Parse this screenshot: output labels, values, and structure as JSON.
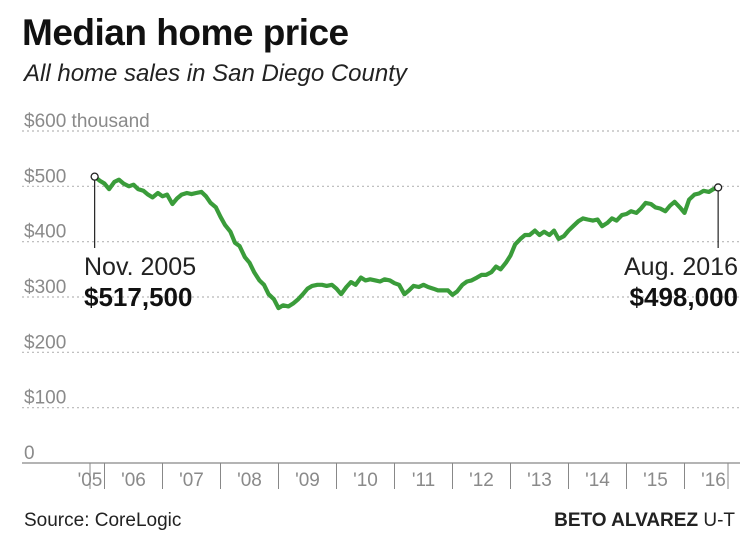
{
  "header": {
    "title": "Median home price",
    "subtitle": "All home sales in San Diego County"
  },
  "footer": {
    "source": "Source: CoreLogic",
    "credit_name": "BETO ALVAREZ",
    "credit_org": " U-T"
  },
  "colors": {
    "line": "#3a9c3a",
    "grid": "#b8b8b8",
    "axis": "#888888",
    "tick_text": "#8a8a8a"
  },
  "chart_data": {
    "type": "line",
    "title": "Median home price",
    "subtitle": "All home sales in San Diego County",
    "xlabel": "",
    "ylabel": "",
    "ylim": [
      0,
      600
    ],
    "xlim": [
      2005.75,
      2016.75
    ],
    "grid": true,
    "y_ticks": [
      {
        "value": 600,
        "label": "$600 thousand"
      },
      {
        "value": 500,
        "label": "$500"
      },
      {
        "value": 400,
        "label": "$400"
      },
      {
        "value": 300,
        "label": "$300"
      },
      {
        "value": 200,
        "label": "$200"
      },
      {
        "value": 100,
        "label": "$100"
      },
      {
        "value": 0,
        "label": "0"
      }
    ],
    "x_ticks": [
      {
        "value": 2005.75,
        "label": "'05"
      },
      {
        "value": 2006.5,
        "label": "'06"
      },
      {
        "value": 2007.5,
        "label": "'07"
      },
      {
        "value": 2008.5,
        "label": "'08"
      },
      {
        "value": 2009.5,
        "label": "'09"
      },
      {
        "value": 2010.5,
        "label": "'10"
      },
      {
        "value": 2011.5,
        "label": "'11"
      },
      {
        "value": 2012.5,
        "label": "'12"
      },
      {
        "value": 2013.5,
        "label": "'13"
      },
      {
        "value": 2014.5,
        "label": "'14"
      },
      {
        "value": 2015.5,
        "label": "'15"
      },
      {
        "value": 2016.5,
        "label": "'16"
      }
    ],
    "series": [
      {
        "values_thousands": [
          [
            2005.83,
            517.5
          ],
          [
            2005.92,
            510
          ],
          [
            2006.0,
            505
          ],
          [
            2006.08,
            495
          ],
          [
            2006.17,
            508
          ],
          [
            2006.25,
            512
          ],
          [
            2006.33,
            505
          ],
          [
            2006.42,
            500
          ],
          [
            2006.5,
            503
          ],
          [
            2006.58,
            495
          ],
          [
            2006.67,
            492
          ],
          [
            2006.75,
            485
          ],
          [
            2006.83,
            480
          ],
          [
            2006.92,
            488
          ],
          [
            2007.0,
            482
          ],
          [
            2007.08,
            485
          ],
          [
            2007.17,
            468
          ],
          [
            2007.25,
            478
          ],
          [
            2007.33,
            485
          ],
          [
            2007.42,
            488
          ],
          [
            2007.5,
            486
          ],
          [
            2007.58,
            488
          ],
          [
            2007.67,
            490
          ],
          [
            2007.75,
            482
          ],
          [
            2007.83,
            470
          ],
          [
            2007.92,
            462
          ],
          [
            2008.0,
            445
          ],
          [
            2008.08,
            430
          ],
          [
            2008.17,
            418
          ],
          [
            2008.25,
            398
          ],
          [
            2008.33,
            392
          ],
          [
            2008.42,
            372
          ],
          [
            2008.5,
            362
          ],
          [
            2008.58,
            345
          ],
          [
            2008.67,
            330
          ],
          [
            2008.75,
            322
          ],
          [
            2008.83,
            305
          ],
          [
            2008.92,
            296
          ],
          [
            2009.0,
            280
          ],
          [
            2009.08,
            285
          ],
          [
            2009.17,
            283
          ],
          [
            2009.25,
            288
          ],
          [
            2009.33,
            295
          ],
          [
            2009.42,
            305
          ],
          [
            2009.5,
            315
          ],
          [
            2009.58,
            320
          ],
          [
            2009.67,
            322
          ],
          [
            2009.75,
            322
          ],
          [
            2009.83,
            320
          ],
          [
            2009.92,
            322
          ],
          [
            2010.0,
            315
          ],
          [
            2010.08,
            305
          ],
          [
            2010.17,
            318
          ],
          [
            2010.25,
            327
          ],
          [
            2010.33,
            322
          ],
          [
            2010.42,
            335
          ],
          [
            2010.5,
            330
          ],
          [
            2010.58,
            332
          ],
          [
            2010.67,
            330
          ],
          [
            2010.75,
            328
          ],
          [
            2010.83,
            332
          ],
          [
            2010.92,
            330
          ],
          [
            2011.0,
            325
          ],
          [
            2011.08,
            322
          ],
          [
            2011.17,
            305
          ],
          [
            2011.25,
            312
          ],
          [
            2011.33,
            320
          ],
          [
            2011.42,
            318
          ],
          [
            2011.5,
            322
          ],
          [
            2011.58,
            318
          ],
          [
            2011.67,
            315
          ],
          [
            2011.75,
            312
          ],
          [
            2011.83,
            312
          ],
          [
            2011.92,
            312
          ],
          [
            2012.0,
            304
          ],
          [
            2012.08,
            310
          ],
          [
            2012.17,
            322
          ],
          [
            2012.25,
            328
          ],
          [
            2012.33,
            330
          ],
          [
            2012.42,
            335
          ],
          [
            2012.5,
            340
          ],
          [
            2012.58,
            340
          ],
          [
            2012.67,
            345
          ],
          [
            2012.75,
            355
          ],
          [
            2012.83,
            350
          ],
          [
            2012.92,
            362
          ],
          [
            2013.0,
            375
          ],
          [
            2013.08,
            395
          ],
          [
            2013.17,
            405
          ],
          [
            2013.25,
            412
          ],
          [
            2013.33,
            412
          ],
          [
            2013.42,
            420
          ],
          [
            2013.5,
            412
          ],
          [
            2013.58,
            418
          ],
          [
            2013.67,
            412
          ],
          [
            2013.75,
            420
          ],
          [
            2013.83,
            405
          ],
          [
            2013.92,
            410
          ],
          [
            2014.0,
            420
          ],
          [
            2014.08,
            428
          ],
          [
            2014.17,
            437
          ],
          [
            2014.25,
            442
          ],
          [
            2014.33,
            440
          ],
          [
            2014.42,
            438
          ],
          [
            2014.5,
            440
          ],
          [
            2014.58,
            428
          ],
          [
            2014.67,
            434
          ],
          [
            2014.75,
            442
          ],
          [
            2014.83,
            438
          ],
          [
            2014.92,
            448
          ],
          [
            2015.0,
            450
          ],
          [
            2015.08,
            455
          ],
          [
            2015.17,
            452
          ],
          [
            2015.25,
            460
          ],
          [
            2015.33,
            470
          ],
          [
            2015.42,
            468
          ],
          [
            2015.5,
            462
          ],
          [
            2015.58,
            460
          ],
          [
            2015.67,
            455
          ],
          [
            2015.75,
            465
          ],
          [
            2015.83,
            472
          ],
          [
            2015.92,
            462
          ],
          [
            2016.0,
            452
          ],
          [
            2016.08,
            476
          ],
          [
            2016.17,
            485
          ],
          [
            2016.25,
            487
          ],
          [
            2016.33,
            492
          ],
          [
            2016.42,
            490
          ],
          [
            2016.5,
            495
          ],
          [
            2016.58,
            498
          ]
        ]
      }
    ],
    "annotations": [
      {
        "label": "Nov. 2005",
        "value_text": "$517,500",
        "x": 2005.83,
        "y": 517.5,
        "align": "start"
      },
      {
        "label": "Aug. 2016",
        "value_text": "$498,000",
        "x": 2016.58,
        "y": 498,
        "align": "end"
      }
    ]
  }
}
